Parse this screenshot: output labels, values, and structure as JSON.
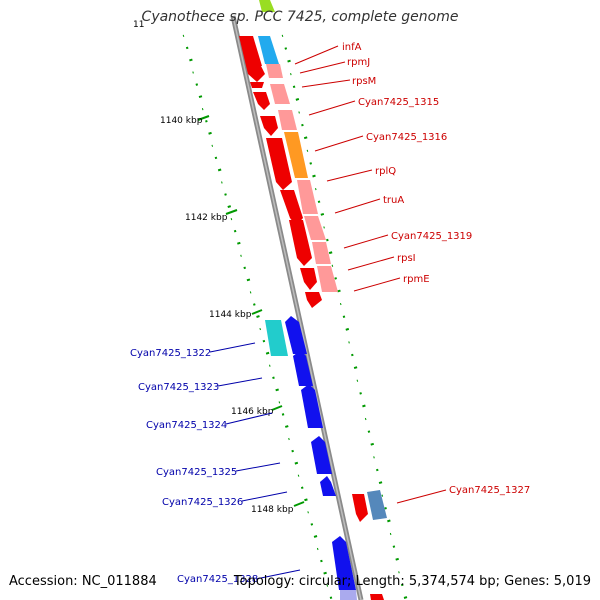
{
  "title": "Cyanothece sp. PCC 7425, complete genome",
  "accession": "Accession: NC_011884",
  "summary": "Topology: circular; Length: 5,374,574 bp; Genes: 5,019",
  "colors": {
    "forward_label": "#cc0000",
    "reverse_label": "#0000aa",
    "backbone": "#888888",
    "tick": "#009900"
  },
  "ticks": [
    "11",
    "1140 kbp",
    "1142 kbp",
    "1144 kbp",
    "1146 kbp",
    "1148 kbp"
  ],
  "genes_forward": [
    "infA",
    "rpmJ",
    "rpsM",
    "Cyan7425_1315",
    "Cyan7425_1316",
    "rplQ",
    "truA",
    "Cyan7425_1319",
    "rpsI",
    "rpmE",
    "Cyan7425_1327"
  ],
  "genes_reverse": [
    "Cyan7425_1322",
    "Cyan7425_1323",
    "Cyan7425_1324",
    "Cyan7425_1325",
    "Cyan7425_1326",
    "Cyan7425_1328"
  ]
}
